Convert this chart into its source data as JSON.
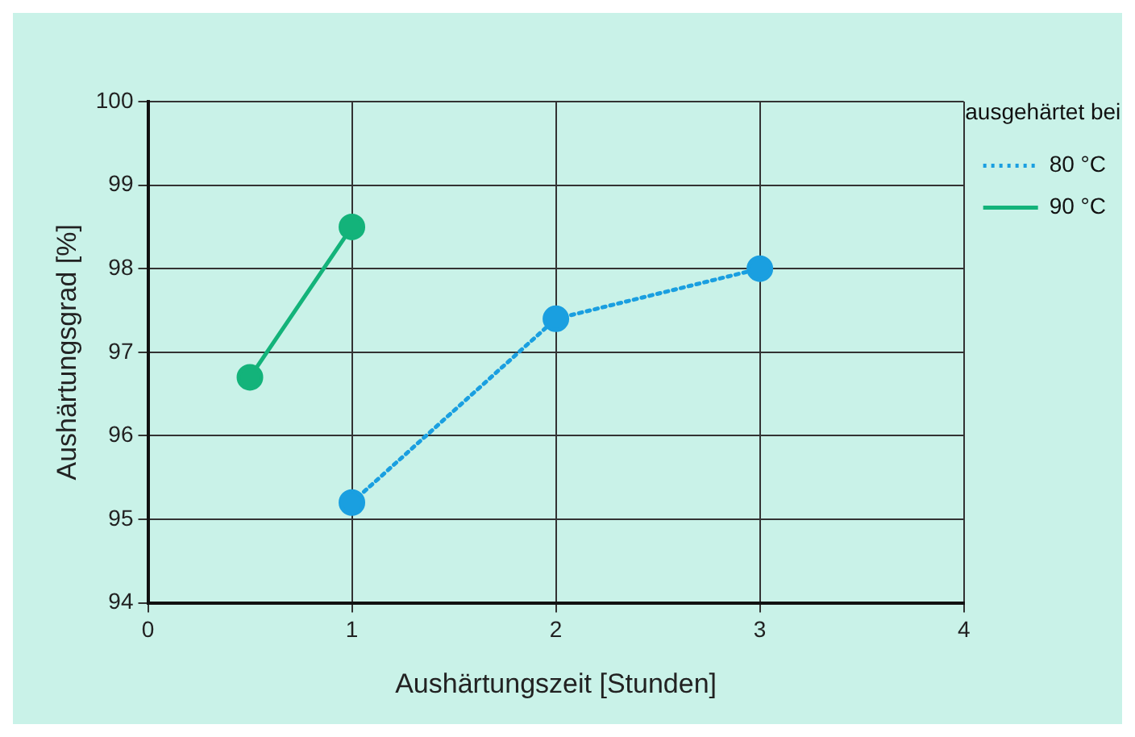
{
  "chart_data": {
    "type": "line",
    "xlabel": "Aushärtungszeit [Stunden]",
    "ylabel": "Aushärtungsgrad [%]",
    "legend_title": "ausgehärtet bei",
    "legend": "right",
    "grid": true,
    "marker": "circle",
    "xlim": [
      0,
      4
    ],
    "xticks": [
      0,
      1,
      2,
      3,
      4
    ],
    "ylim": [
      94,
      100
    ],
    "yticks": [
      94,
      95,
      96,
      97,
      98,
      99,
      100
    ],
    "series": [
      {
        "name": "80 °C",
        "color": "#1a9fe0",
        "line_style": "dotted",
        "x": [
          1,
          2,
          3
        ],
        "values": [
          95.2,
          97.4,
          98.0
        ]
      },
      {
        "name": "90 °C",
        "color": "#13b37a",
        "line_style": "solid",
        "x": [
          0.5,
          1
        ],
        "values": [
          96.7,
          98.5
        ]
      }
    ]
  }
}
